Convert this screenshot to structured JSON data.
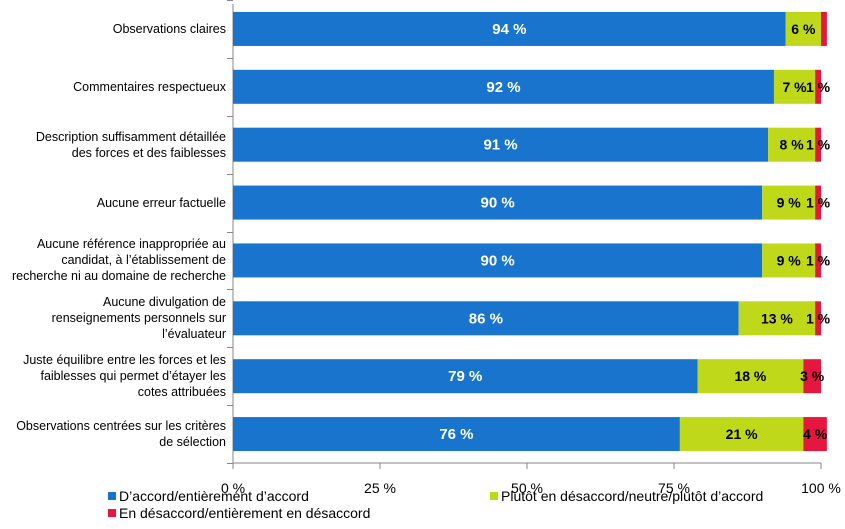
{
  "chart_data": {
    "type": "bar",
    "orientation": "horizontal",
    "stacked": true,
    "categories": [
      "Observations claires",
      "Commentaires respectueux",
      "Description suffisamment détaillée des forces et des faiblesses",
      "Aucune erreur factuelle",
      "Aucune référence inappropriée au candidat, à l’établissement de recherche ni au domaine de recherche",
      "Aucune divulgation de renseignements personnels sur l’évaluateur",
      "Juste équilibre entre les forces et les faiblesses qui permet d’étayer les cotes attribuées",
      "Observations centrées sur les critères de sélection"
    ],
    "category_lines": [
      [
        "Observations claires"
      ],
      [
        "Commentaires respectueux"
      ],
      [
        "Description suffisamment détaillée",
        "des forces et des faiblesses"
      ],
      [
        "Aucune erreur factuelle"
      ],
      [
        "Aucune référence inappropriée au",
        "candidat, à l’établissement de",
        "recherche ni au domaine de recherche"
      ],
      [
        "Aucune divulgation de",
        "renseignements personnels sur",
        "l’évaluateur"
      ],
      [
        "Juste équilibre entre les forces et les",
        "faiblesses qui permet d’étayer les",
        "cotes attribuées"
      ],
      [
        "Observations centrées sur les critères",
        "de sélection"
      ]
    ],
    "series": [
      {
        "name": "D’accord/entièrement d’accord",
        "color": "#1874CD",
        "values": [
          94,
          92,
          91,
          90,
          90,
          86,
          79,
          76
        ],
        "labels": [
          "94 %",
          "92 %",
          "91 %",
          "90 %",
          "90 %",
          "86 %",
          "79 %",
          "76 %"
        ]
      },
      {
        "name": "Plutôt en désaccord/neutre/plutôt d’accord",
        "color": "#BFD91A",
        "values": [
          6,
          7,
          8,
          9,
          9,
          13,
          18,
          21
        ],
        "labels": [
          "6 %",
          "7 %",
          "8 %",
          "9 %",
          "9 %",
          "13 %",
          "18 %",
          "21 %"
        ]
      },
      {
        "name": "En désaccord/entièrement en désaccord",
        "color": "#E5173F",
        "values": [
          1,
          1,
          1,
          1,
          1,
          1,
          3,
          4
        ],
        "labels": [
          "",
          "1 %",
          "1 %",
          "1 %",
          "1 %",
          "1 %",
          "3 %",
          "4 %"
        ]
      }
    ],
    "xlim": [
      0,
      100
    ],
    "xticks": [
      0,
      25,
      50,
      75,
      100
    ],
    "xtick_labels": [
      "0 %",
      "25 %",
      "50 %",
      "75 %",
      "100 %"
    ],
    "legend_position": "bottom",
    "grid": false
  }
}
